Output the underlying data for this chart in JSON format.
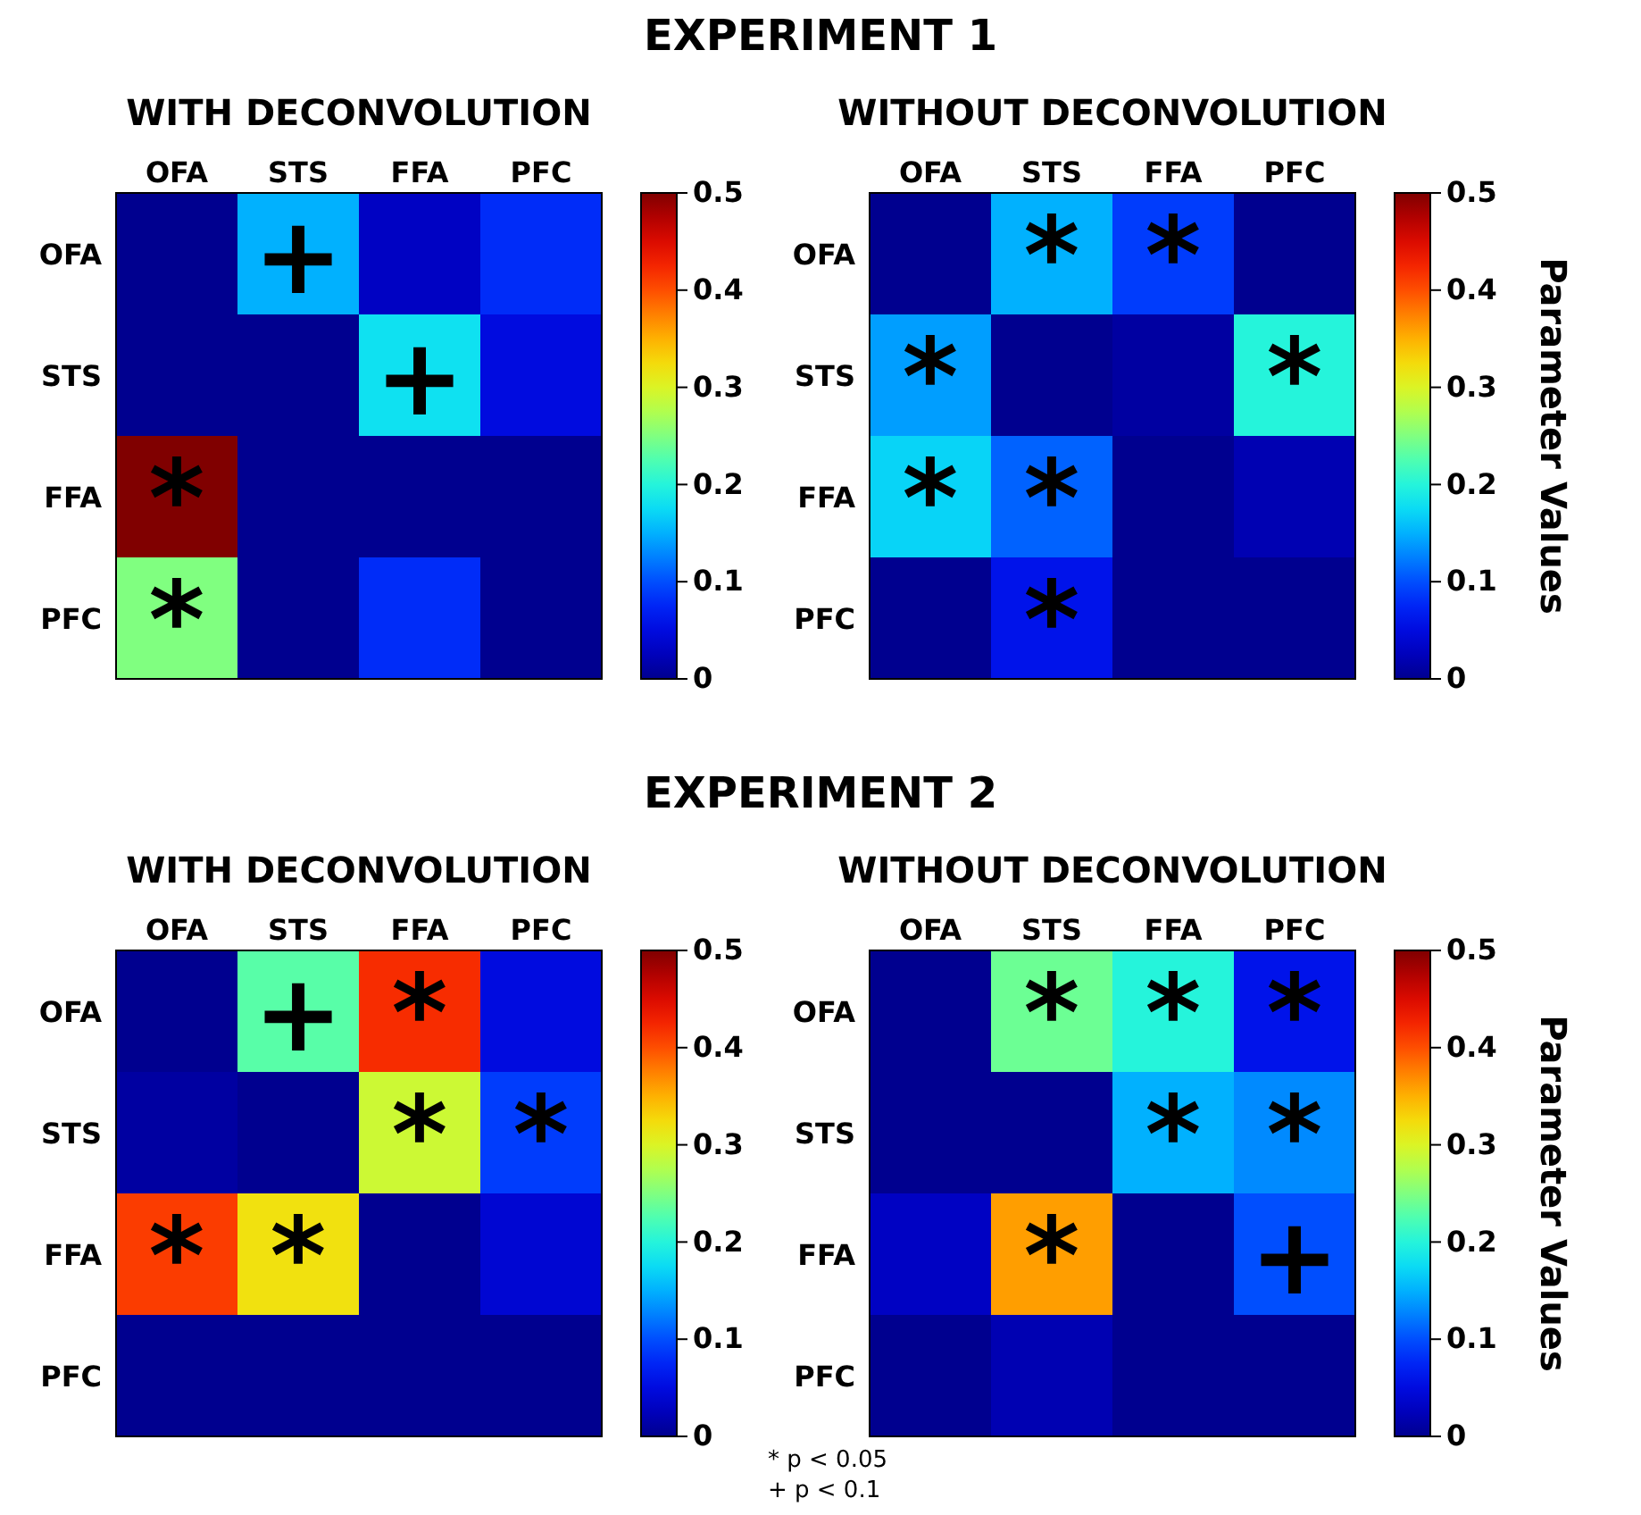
{
  "chart_data": [
    {
      "type": "heatmap",
      "title": "WITH DECONVOLUTION",
      "annotations": [
        "EXPERIMENT 1"
      ],
      "categories": [
        "OFA",
        "STS",
        "FFA",
        "PFC"
      ],
      "y_categories": [
        "OFA",
        "STS",
        "FFA",
        "PFC"
      ],
      "cells": [
        [
          0,
          0.15,
          0.03,
          0.08
        ],
        [
          0,
          0,
          0.18,
          0.05
        ],
        [
          0.5,
          0,
          0,
          0
        ],
        [
          0.25,
          0,
          0.08,
          0
        ]
      ],
      "cell_labels": [
        [
          null,
          "+",
          null,
          null
        ],
        [
          null,
          null,
          "+",
          null
        ],
        [
          "*",
          null,
          null,
          null
        ],
        [
          "*",
          null,
          null,
          null
        ]
      ],
      "clim": [
        0,
        0.5
      ],
      "cticks": [
        0,
        0.1,
        0.2,
        0.3,
        0.4,
        0.5
      ]
    },
    {
      "type": "heatmap",
      "title": "WITHOUT DECONVOLUTION",
      "clabel": "Parameter Values",
      "categories": [
        "OFA",
        "STS",
        "FFA",
        "PFC"
      ],
      "y_categories": [
        "OFA",
        "STS",
        "FFA",
        "PFC"
      ],
      "cells": [
        [
          0,
          0.15,
          0.09,
          0
        ],
        [
          0.14,
          0,
          0.01,
          0.2
        ],
        [
          0.17,
          0.11,
          0,
          0.02
        ],
        [
          0,
          0.06,
          0,
          0
        ]
      ],
      "cell_labels": [
        [
          null,
          "*",
          "*",
          null
        ],
        [
          "*",
          null,
          null,
          "*"
        ],
        [
          "*",
          "*",
          null,
          null
        ],
        [
          null,
          "*",
          null,
          null
        ]
      ],
      "clim": [
        0,
        0.5
      ],
      "cticks": [
        0,
        0.1,
        0.2,
        0.3,
        0.4,
        0.5
      ]
    },
    {
      "type": "heatmap",
      "title": "WITH DECONVOLUTION",
      "annotations": [
        "EXPERIMENT 2",
        "* p < 0.05",
        "+ p < 0.1"
      ],
      "categories": [
        "OFA",
        "STS",
        "FFA",
        "PFC"
      ],
      "y_categories": [
        "OFA",
        "STS",
        "FFA",
        "PFC"
      ],
      "cells": [
        [
          0,
          0.23,
          0.42,
          0.05
        ],
        [
          0.01,
          0,
          0.29,
          0.09
        ],
        [
          0.41,
          0.32,
          0,
          0.04
        ],
        [
          0,
          0,
          0,
          0
        ]
      ],
      "cell_labels": [
        [
          null,
          "+",
          "*",
          null
        ],
        [
          null,
          null,
          "*",
          "*"
        ],
        [
          "*",
          "*",
          null,
          null
        ],
        [
          null,
          null,
          null,
          null
        ]
      ],
      "clim": [
        0,
        0.5
      ],
      "cticks": [
        0,
        0.1,
        0.2,
        0.3,
        0.4,
        0.5
      ]
    },
    {
      "type": "heatmap",
      "title": "WITHOUT DECONVOLUTION",
      "clabel": "Parameter Values",
      "categories": [
        "OFA",
        "STS",
        "FFA",
        "PFC"
      ],
      "y_categories": [
        "OFA",
        "STS",
        "FFA",
        "PFC"
      ],
      "cells": [
        [
          0,
          0.24,
          0.2,
          0.06
        ],
        [
          0,
          0,
          0.15,
          0.13
        ],
        [
          0.03,
          0.36,
          0,
          0.1
        ],
        [
          0,
          0.02,
          0,
          0
        ]
      ],
      "cell_labels": [
        [
          null,
          "*",
          "*",
          "*"
        ],
        [
          null,
          null,
          "*",
          "*"
        ],
        [
          null,
          "*",
          null,
          "+"
        ],
        [
          null,
          null,
          null,
          null
        ]
      ],
      "clim": [
        0,
        0.5
      ],
      "cticks": [
        0,
        0.1,
        0.2,
        0.3,
        0.4,
        0.5
      ]
    }
  ]
}
